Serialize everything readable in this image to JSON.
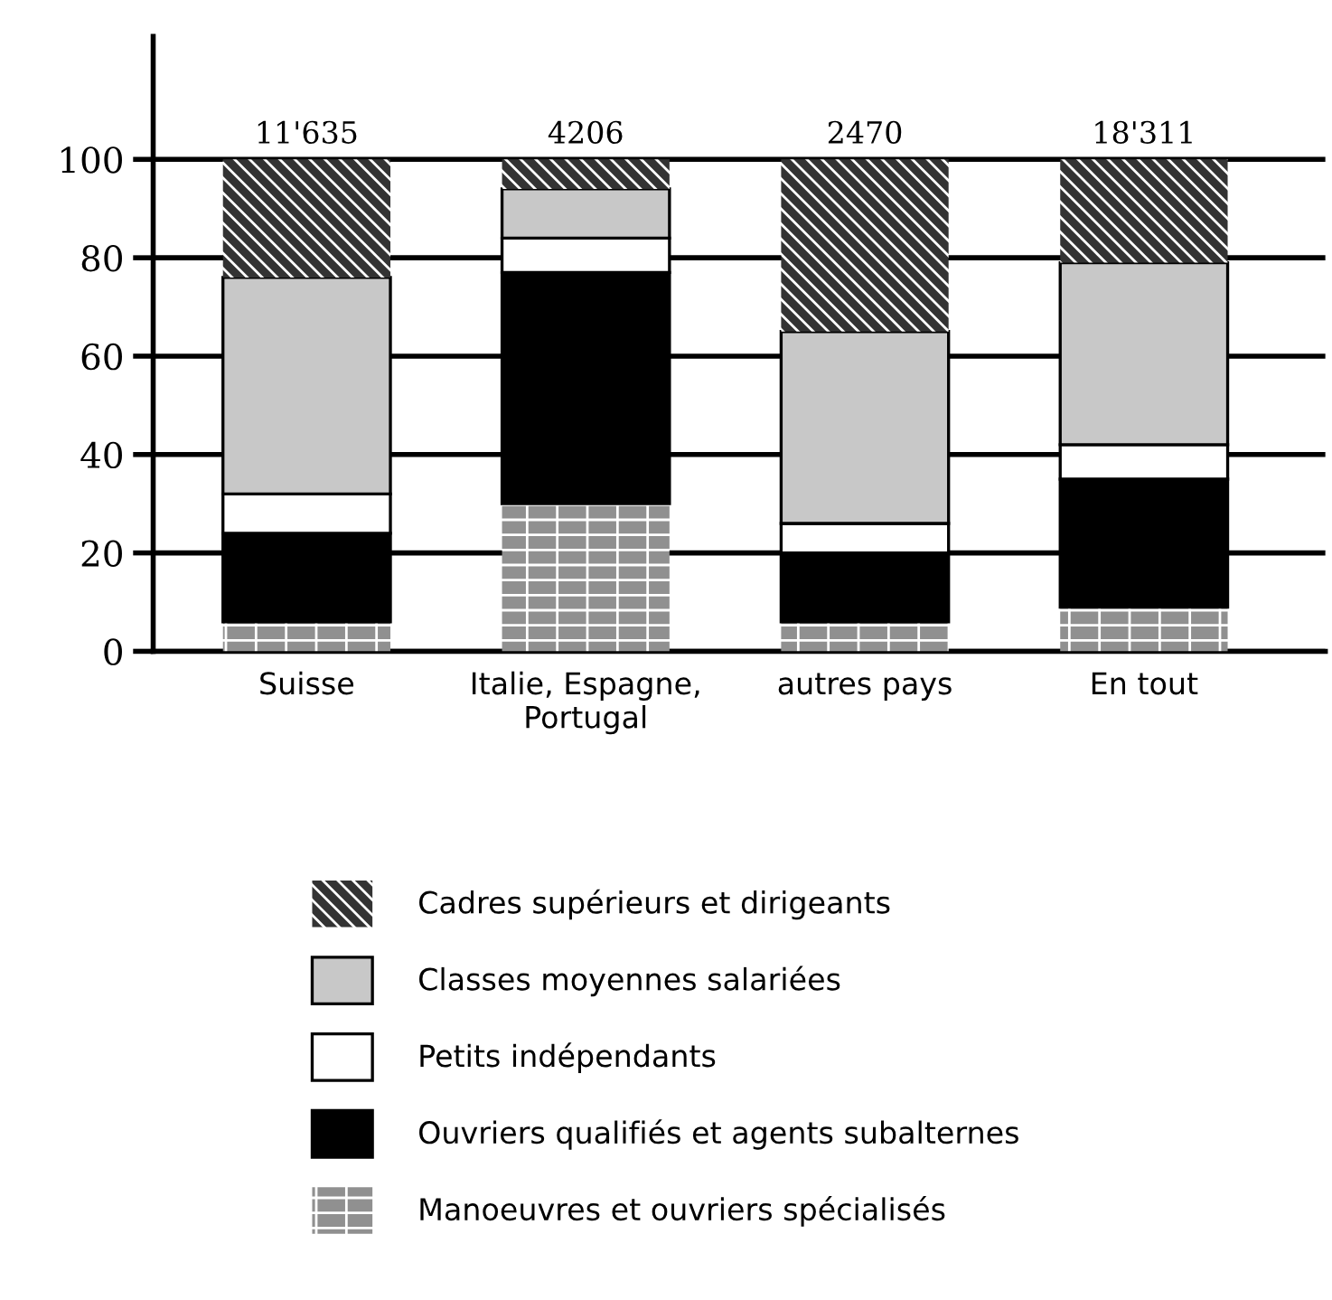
{
  "chart_data": {
    "type": "bar",
    "stacked": true,
    "categories": [
      "Suisse",
      "Italie, Espagne,\nPortugal",
      "autres pays",
      "En tout"
    ],
    "series": [
      {
        "name": "Manoeuvres et ouvriers spécialisés",
        "color": "#909090",
        "values": [
          6,
          30,
          6,
          9
        ]
      },
      {
        "name": "Ouvriers qualifiés et agents subalternes",
        "color": "#000000",
        "values": [
          18,
          47,
          14,
          26
        ]
      },
      {
        "name": "Petits indépendants",
        "color": "#ffffff",
        "values": [
          8,
          7,
          6,
          7
        ]
      },
      {
        "name": "Classes moyennes salariées",
        "color": "#c8c8c8",
        "values": [
          44,
          10,
          39,
          37
        ]
      },
      {
        "name": "Cadres supérieurs et dirigeants",
        "color": "#333333",
        "values": [
          24,
          6,
          35,
          21
        ]
      }
    ],
    "annotations": [
      {
        "text": "11'635",
        "x": "Suisse",
        "y": 100
      },
      {
        "text": "4206",
        "x": "Italie, Espagne,\nPortugal",
        "y": 100
      },
      {
        "text": "2470",
        "x": "autres pays",
        "y": 100
      },
      {
        "text": "18'311",
        "x": "En tout",
        "y": 100
      }
    ],
    "ylim": [
      0,
      125
    ],
    "yticks": [
      0,
      20,
      40,
      60,
      80,
      100
    ],
    "grid": "y",
    "legend": "bottom"
  }
}
